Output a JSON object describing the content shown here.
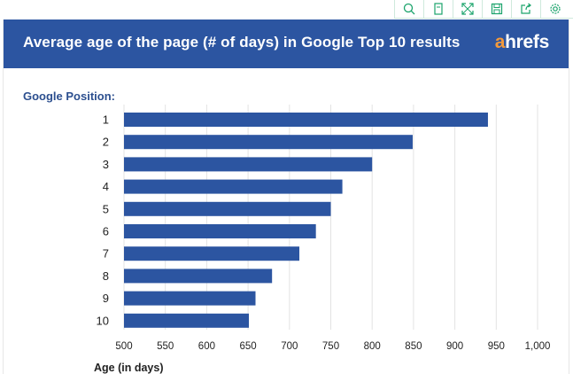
{
  "toolbar": {
    "icons": [
      "search-zoom-icon",
      "copy-icon",
      "fullscreen-icon",
      "save-icon",
      "share-icon",
      "settings-icon"
    ],
    "accent": "#1aa36b"
  },
  "header": {
    "title": "Average age of the page (# of days) in Google Top 10 results",
    "logo_a": "a",
    "logo_rest": "hrefs",
    "background": "#2c55a1"
  },
  "chart_data": {
    "type": "bar",
    "orientation": "horizontal",
    "title": "Average age of the page (# of days) in Google Top 10 results",
    "ylabel": "Google Position:",
    "xlabel": "Age (in days)",
    "categories": [
      "1",
      "2",
      "3",
      "4",
      "5",
      "6",
      "7",
      "8",
      "9",
      "10"
    ],
    "values": [
      940,
      849,
      800,
      764,
      750,
      732,
      712,
      679,
      659,
      651
    ],
    "xlim": [
      500,
      1000
    ],
    "xticks": [
      "500",
      "550",
      "600",
      "650",
      "700",
      "750",
      "800",
      "850",
      "900",
      "950",
      "1,000"
    ],
    "bar_color": "#2c55a1",
    "grid": true
  }
}
